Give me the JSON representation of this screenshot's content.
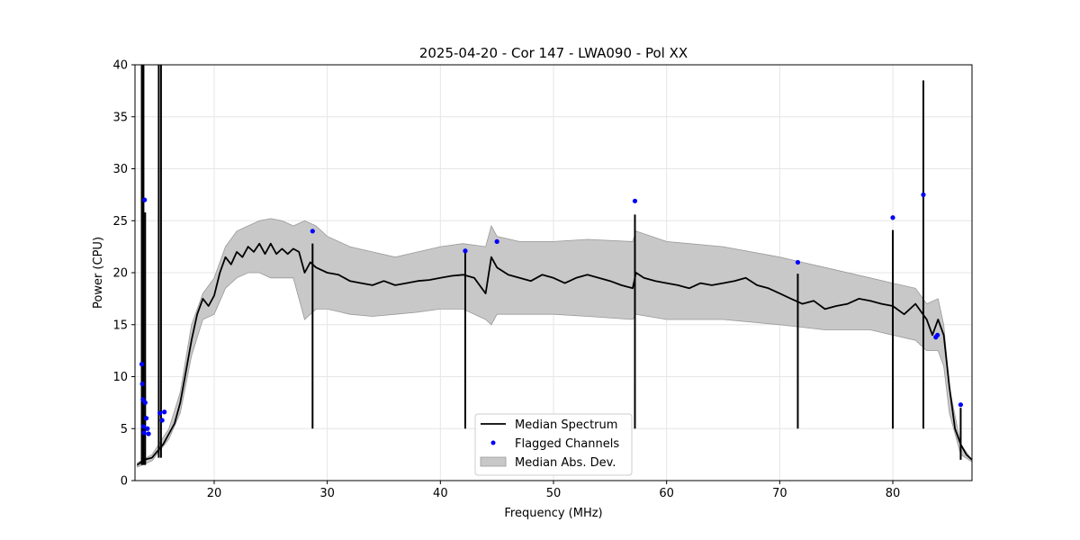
{
  "chart_data": {
    "type": "line",
    "title": "2025-04-20 - Cor 147 - LWA090 - Pol XX",
    "xlabel": "Frequency (MHz)",
    "ylabel": "Power (CPU)",
    "xlim": [
      13,
      87
    ],
    "ylim": [
      0,
      40
    ],
    "xticks": [
      20,
      30,
      40,
      50,
      60,
      70,
      80
    ],
    "yticks": [
      0,
      5,
      10,
      15,
      20,
      25,
      30,
      35,
      40
    ],
    "grid": true,
    "legend_position": "bottom-center",
    "legend": [
      {
        "key": "median",
        "label": "Median Spectrum"
      },
      {
        "key": "flagged",
        "label": "Flagged Channels"
      },
      {
        "key": "mad",
        "label": "Median Abs. Dev."
      }
    ],
    "colors": {
      "median": "#000000",
      "flagged": "#0000ff",
      "mad": "#c8c8c8",
      "mad_edge": "#999999",
      "grid": "#e6e6e6"
    },
    "series": [
      {
        "name": "Median Spectrum",
        "x": [
          13.2,
          13.8,
          14.5,
          15.5,
          16.0,
          16.5,
          17.0,
          17.5,
          18.0,
          18.5,
          19.0,
          19.5,
          20.0,
          20.5,
          21.0,
          21.5,
          22.0,
          22.5,
          23.0,
          23.5,
          24.0,
          24.5,
          25.0,
          25.5,
          26.0,
          26.5,
          27.0,
          27.5,
          28.0,
          28.5,
          29.0,
          30.0,
          31.0,
          32.0,
          33.0,
          34.0,
          35.0,
          36.0,
          37.0,
          38.0,
          39.0,
          40.0,
          41.0,
          42.0,
          43.0,
          44.0,
          44.5,
          45.0,
          46.0,
          47.0,
          48.0,
          49.0,
          50.0,
          51.0,
          52.0,
          53.0,
          54.0,
          55.0,
          56.0,
          57.0,
          57.3,
          58.0,
          59.0,
          60.0,
          61.0,
          62.0,
          63.0,
          64.0,
          65.0,
          66.0,
          67.0,
          68.0,
          69.0,
          70.0,
          71.0,
          72.0,
          73.0,
          74.0,
          75.0,
          76.0,
          77.0,
          78.0,
          79.0,
          80.0,
          81.0,
          82.0,
          83.0,
          83.5,
          84.0,
          84.5,
          85.0,
          85.5,
          86.0,
          86.5,
          87.0
        ],
        "values": [
          1.5,
          2.0,
          2.2,
          3.5,
          4.5,
          5.5,
          7.5,
          10.5,
          13.5,
          16.0,
          17.5,
          16.8,
          17.8,
          20.0,
          21.5,
          20.8,
          22.0,
          21.5,
          22.5,
          22.0,
          22.8,
          21.8,
          22.8,
          21.8,
          22.3,
          21.8,
          22.3,
          22.0,
          20.0,
          21.0,
          20.5,
          20.0,
          19.8,
          19.2,
          19.0,
          18.8,
          19.2,
          18.8,
          19.0,
          19.2,
          19.3,
          19.5,
          19.7,
          19.8,
          19.5,
          18.0,
          21.5,
          20.5,
          19.8,
          19.5,
          19.2,
          19.8,
          19.5,
          19.0,
          19.5,
          19.8,
          19.5,
          19.2,
          18.8,
          18.5,
          20.0,
          19.5,
          19.2,
          19.0,
          18.8,
          18.5,
          19.0,
          18.8,
          19.0,
          19.2,
          19.5,
          18.8,
          18.5,
          18.0,
          17.5,
          17.0,
          17.3,
          16.5,
          16.8,
          17.0,
          17.5,
          17.3,
          17.0,
          16.8,
          16.0,
          17.0,
          15.5,
          14.0,
          15.5,
          14.0,
          9.0,
          5.0,
          3.5,
          2.5,
          2.0
        ]
      },
      {
        "name": "Median Abs. Dev.",
        "x": [
          13.2,
          14.5,
          16.0,
          17.0,
          18.0,
          19.0,
          20.0,
          21.0,
          22.0,
          23.0,
          24.0,
          25.0,
          26.0,
          27.0,
          28.0,
          29.0,
          30.0,
          32.0,
          34.0,
          36.0,
          38.0,
          40.0,
          42.0,
          44.0,
          44.5,
          45.0,
          47.0,
          50.0,
          53.0,
          57.0,
          57.3,
          60.0,
          65.0,
          70.0,
          74.0,
          78.0,
          80.0,
          82.0,
          83.0,
          84.0,
          84.5,
          85.0,
          86.0,
          87.0
        ],
        "upper": [
          1.7,
          2.5,
          5.0,
          8.5,
          15.0,
          18.0,
          19.5,
          22.5,
          24.0,
          24.5,
          25.0,
          25.2,
          25.0,
          24.5,
          25.0,
          24.5,
          23.5,
          22.5,
          22.0,
          21.5,
          22.0,
          22.5,
          22.8,
          22.5,
          24.5,
          23.5,
          23.0,
          23.0,
          23.2,
          23.0,
          24.0,
          23.0,
          22.5,
          21.5,
          20.5,
          19.5,
          19.0,
          18.5,
          17.0,
          17.5,
          15.0,
          9.0,
          3.5,
          2.0
        ],
        "lower": [
          1.3,
          1.9,
          4.0,
          6.5,
          12.0,
          15.5,
          16.0,
          18.5,
          19.5,
          20.0,
          20.0,
          19.5,
          19.5,
          19.5,
          15.5,
          16.5,
          16.5,
          16.0,
          15.8,
          16.0,
          16.2,
          16.5,
          16.5,
          15.5,
          15.0,
          16.0,
          16.0,
          16.0,
          15.8,
          15.5,
          16.0,
          15.5,
          15.5,
          15.0,
          14.5,
          14.5,
          14.0,
          13.5,
          12.5,
          12.5,
          11.0,
          6.5,
          2.5,
          1.8
        ]
      },
      {
        "name": "Flagged Channels",
        "x": [
          13.6,
          13.65,
          13.7,
          13.75,
          13.8,
          13.85,
          13.9,
          14.0,
          14.1,
          14.2,
          15.2,
          15.4,
          15.6,
          28.7,
          42.2,
          45.0,
          57.2,
          71.6,
          80.0,
          82.7,
          83.8,
          83.95,
          86.0
        ],
        "values": [
          11.2,
          9.3,
          7.8,
          5.2,
          4.6,
          27.0,
          7.5,
          6.0,
          5.0,
          4.5,
          6.5,
          5.8,
          6.6,
          24.0,
          22.1,
          23.0,
          26.9,
          21.0,
          25.3,
          27.5,
          13.8,
          14.0,
          7.3
        ]
      }
    ],
    "spikes": [
      {
        "x": 13.6,
        "top": 40
      },
      {
        "x": 13.75,
        "top": 40
      },
      {
        "x": 13.9,
        "top": 25.8
      },
      {
        "x": 15.1,
        "top": 40
      },
      {
        "x": 15.3,
        "top": 40
      },
      {
        "x": 28.7,
        "top": 22.8
      },
      {
        "x": 42.2,
        "top": 22.2
      },
      {
        "x": 57.2,
        "top": 25.6
      },
      {
        "x": 71.6,
        "top": 19.9
      },
      {
        "x": 80.0,
        "top": 24.1
      },
      {
        "x": 82.7,
        "top": 38.5
      },
      {
        "x": 86.0,
        "top": 7.0
      }
    ]
  }
}
